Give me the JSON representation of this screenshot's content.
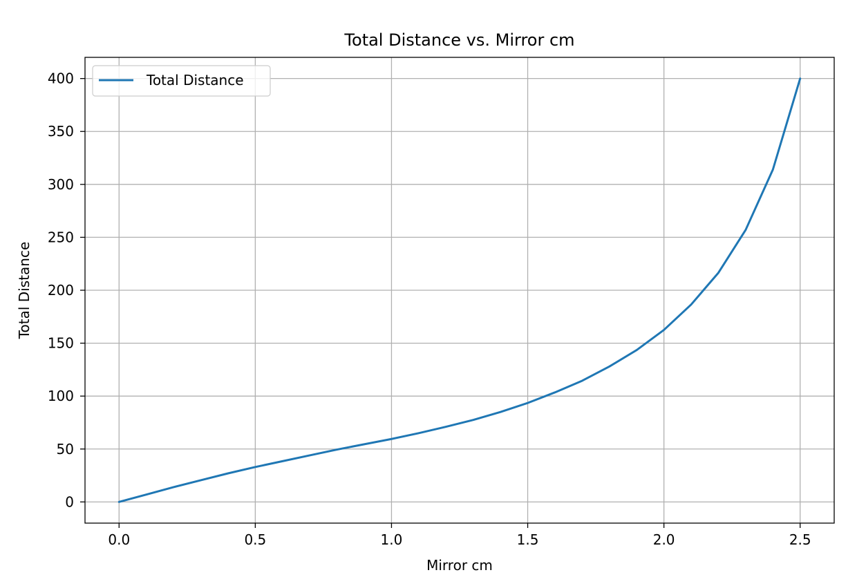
{
  "chart_data": {
    "type": "line",
    "title": "Total Distance vs. Mirror cm",
    "xlabel": "Mirror cm",
    "ylabel": "Total Distance",
    "xlim": [
      -0.125,
      2.625
    ],
    "ylim": [
      -20,
      420
    ],
    "xticks": [
      0.0,
      0.5,
      1.0,
      1.5,
      2.0,
      2.5
    ],
    "xtick_labels": [
      "0.0",
      "0.5",
      "1.0",
      "1.5",
      "2.0",
      "2.5"
    ],
    "yticks": [
      0,
      50,
      100,
      150,
      200,
      250,
      300,
      350,
      400
    ],
    "ytick_labels": [
      "0",
      "50",
      "100",
      "150",
      "200",
      "250",
      "300",
      "350",
      "400"
    ],
    "grid": true,
    "legend_position": "upper-left",
    "series": [
      {
        "name": "Total Distance",
        "color": "#1f77b4",
        "x": [
          0.0,
          0.1,
          0.2,
          0.3,
          0.4,
          0.5,
          0.6,
          0.7,
          0.8,
          0.9,
          1.0,
          1.1,
          1.2,
          1.3,
          1.4,
          1.5,
          1.6,
          1.7,
          1.8,
          1.9,
          2.0,
          2.1,
          2.2,
          2.3,
          2.4,
          2.5
        ],
        "y": [
          0,
          7,
          14,
          20.5,
          27,
          33,
          38.5,
          44,
          49.5,
          54.5,
          59.5,
          65,
          71,
          77.5,
          85,
          93.5,
          103.5,
          114.5,
          128,
          143.5,
          162.5,
          186.5,
          216.5,
          257,
          314,
          400
        ]
      }
    ]
  }
}
